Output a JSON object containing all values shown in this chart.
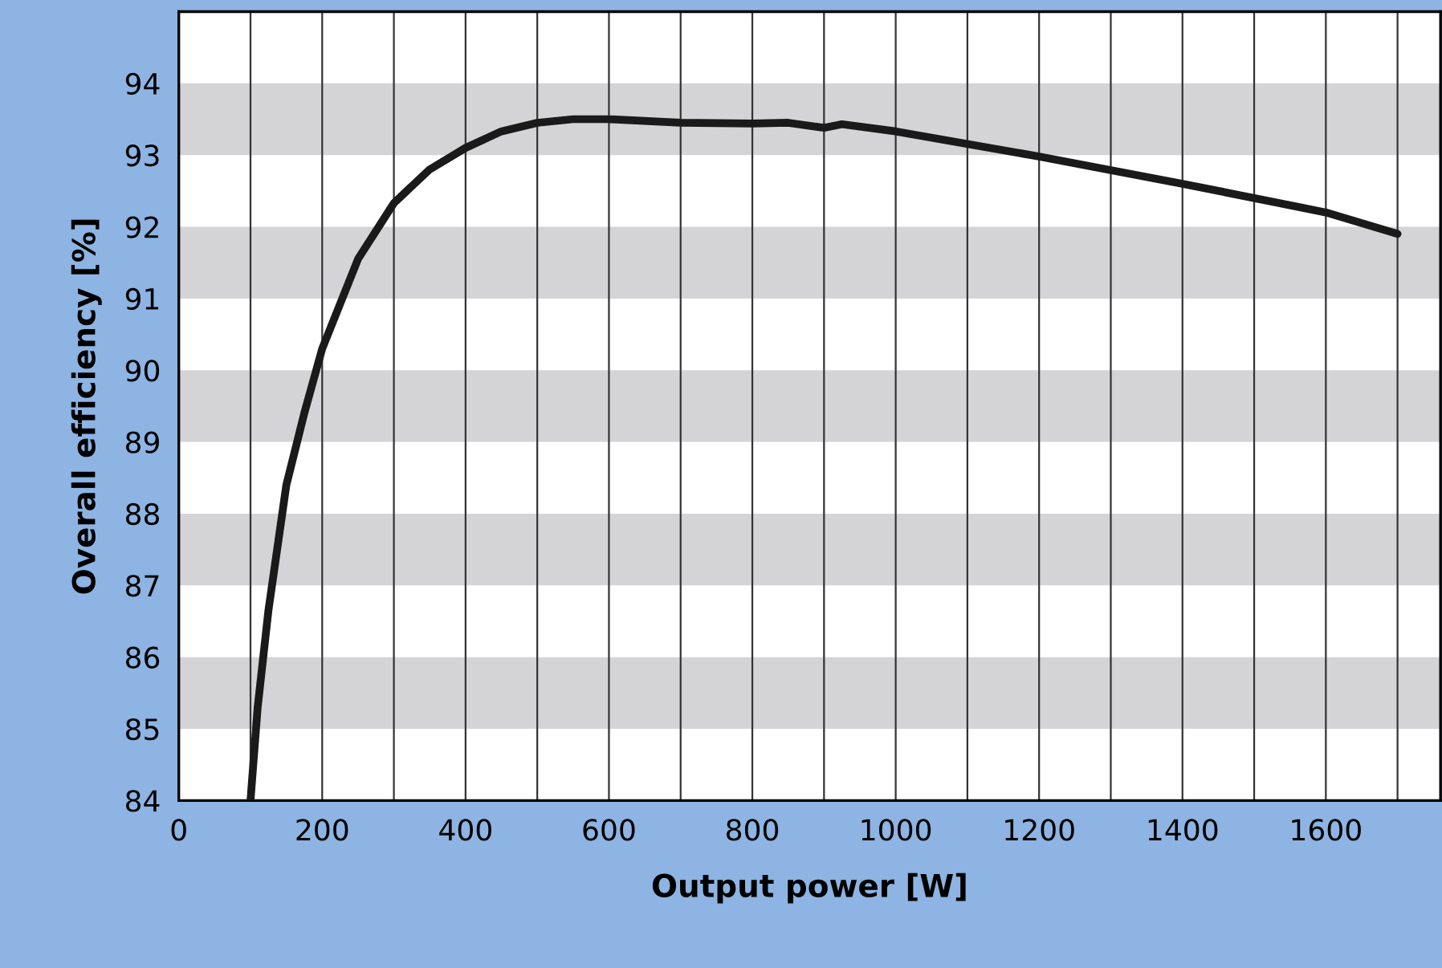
{
  "chart_data": {
    "type": "line",
    "xlabel": "Output power [W]",
    "ylabel": "Overall efficiency [%]",
    "x": [
      100,
      110,
      125,
      150,
      175,
      200,
      250,
      300,
      350,
      400,
      450,
      500,
      550,
      600,
      700,
      800,
      850,
      900,
      925,
      1000,
      1200,
      1400,
      1600,
      1700
    ],
    "series": [
      {
        "color": "#1a1a1a",
        "values": [
          84.0,
          85.3,
          86.65,
          88.4,
          89.4,
          90.3,
          91.55,
          92.33,
          92.8,
          93.1,
          93.33,
          93.45,
          93.5,
          93.5,
          93.45,
          93.44,
          93.45,
          93.38,
          93.43,
          93.33,
          92.98,
          92.6,
          92.2,
          91.9
        ]
      }
    ],
    "xlim": [
      0,
      1760
    ],
    "ylim": [
      84,
      95
    ],
    "xticks": [
      0,
      {
        "value": 100,
        "label": null
      },
      200,
      {
        "value": 300,
        "label": null
      },
      400,
      {
        "value": 500,
        "label": null
      },
      600,
      {
        "value": 700,
        "label": null
      },
      800,
      {
        "value": 900,
        "label": null
      },
      1000,
      {
        "value": 1100,
        "label": null
      },
      1200,
      {
        "value": 1300,
        "label": null
      },
      1400,
      {
        "value": 1500,
        "label": null
      },
      1600,
      {
        "value": 1700,
        "label": null
      }
    ],
    "yticks": [
      84,
      85,
      86,
      87,
      88,
      89,
      90,
      91,
      92,
      93,
      94
    ],
    "bands": [
      {
        "axis": "y",
        "from": 85,
        "to": 86,
        "color": "#d4d4d6"
      },
      {
        "axis": "y",
        "from": 87,
        "to": 88,
        "color": "#d4d4d6"
      },
      {
        "axis": "y",
        "from": 89,
        "to": 90,
        "color": "#d4d4d6"
      },
      {
        "axis": "y",
        "from": 91,
        "to": 92,
        "color": "#d4d4d6"
      },
      {
        "axis": "y",
        "from": 93,
        "to": 94,
        "color": "#d4d4d6"
      }
    ],
    "grid": "x",
    "marker": "none",
    "line_style": "solid",
    "legend": false
  }
}
